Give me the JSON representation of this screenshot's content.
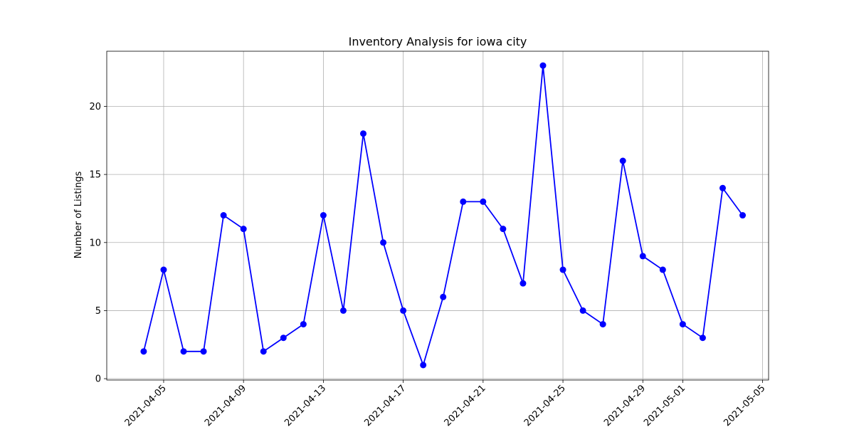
{
  "chart_data": {
    "type": "line",
    "title": "Inventory Analysis for iowa city",
    "xlabel": "",
    "ylabel": "Number of Listings",
    "xlim": [
      "2021-04-02",
      "2021-05-05"
    ],
    "ylim": [
      0,
      24
    ],
    "grid": true,
    "color": "#0000ff",
    "x_ticks": [
      "2021-04-05",
      "2021-04-09",
      "2021-04-13",
      "2021-04-17",
      "2021-04-21",
      "2021-04-25",
      "2021-04-29",
      "2021-05-01",
      "2021-05-05"
    ],
    "y_ticks": [
      0,
      5,
      10,
      15,
      20
    ],
    "x": [
      "2021-04-04",
      "2021-04-05",
      "2021-04-06",
      "2021-04-07",
      "2021-04-08",
      "2021-04-09",
      "2021-04-10",
      "2021-04-11",
      "2021-04-12",
      "2021-04-13",
      "2021-04-14",
      "2021-04-15",
      "2021-04-16",
      "2021-04-17",
      "2021-04-18",
      "2021-04-19",
      "2021-04-20",
      "2021-04-21",
      "2021-04-22",
      "2021-04-23",
      "2021-04-24",
      "2021-04-25",
      "2021-04-26",
      "2021-04-27",
      "2021-04-28",
      "2021-04-29",
      "2021-04-30",
      "2021-05-01",
      "2021-05-02",
      "2021-05-03",
      "2021-05-04"
    ],
    "series": [
      {
        "values": [
          2,
          8,
          2,
          2,
          12,
          11,
          2,
          3,
          4,
          12,
          5,
          18,
          10,
          5,
          1,
          6,
          13,
          13,
          11,
          7,
          23,
          8,
          5,
          4,
          16,
          9,
          8,
          4,
          3,
          14,
          12
        ]
      }
    ]
  }
}
